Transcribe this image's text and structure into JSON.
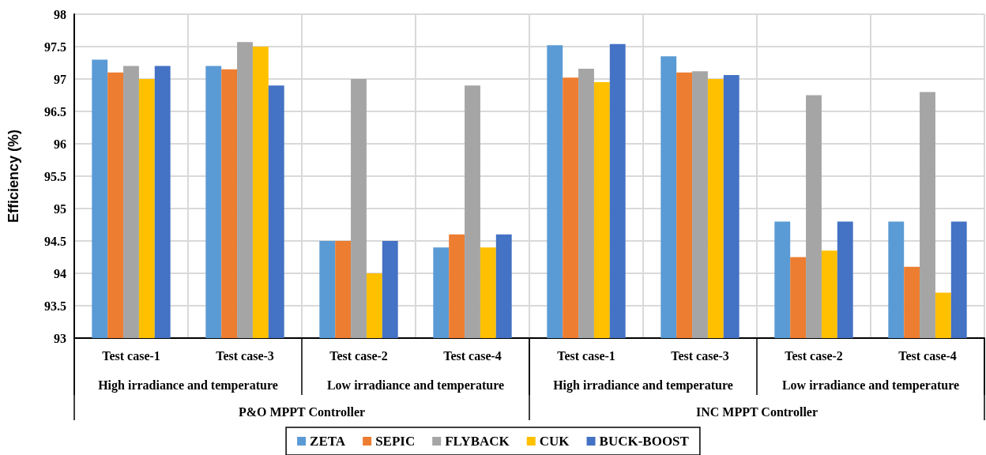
{
  "chart_data": {
    "type": "bar",
    "ylabel": "Efficiency (%)",
    "categories": [
      "Test case-1",
      "Test case-3",
      "Test case-2",
      "Test case-4",
      "Test case-1",
      "Test case-3",
      "Test case-2",
      "Test case-4"
    ],
    "annotations": [
      "High irradiance and temperature",
      "Low irradiance and temperature",
      "High irradiance and temperature",
      "Low irradiance and temperature",
      "P&O MPPT Controller",
      "INC MPPT Controller"
    ],
    "series": [
      {
        "name": "ZETA",
        "color": "#5b9bd5",
        "values": [
          97.3,
          97.2,
          94.5,
          94.4,
          97.52,
          97.35,
          94.8,
          94.8
        ]
      },
      {
        "name": "SEPIC",
        "color": "#ed7d31",
        "values": [
          97.1,
          97.15,
          94.5,
          94.6,
          97.02,
          97.1,
          94.25,
          94.1
        ]
      },
      {
        "name": "FLYBACK",
        "color": "#a5a5a5",
        "values": [
          97.2,
          97.57,
          97.0,
          96.9,
          97.16,
          97.12,
          96.75,
          96.8
        ]
      },
      {
        "name": "CUK",
        "color": "#ffc000",
        "values": [
          97.0,
          97.5,
          94.0,
          94.4,
          96.95,
          97.0,
          94.35,
          93.7
        ]
      },
      {
        "name": "BUCK-BOOST",
        "color": "#4472c4",
        "values": [
          97.2,
          96.9,
          94.5,
          94.6,
          97.54,
          97.06,
          94.8,
          94.8
        ]
      }
    ],
    "ylim": [
      93,
      98
    ],
    "yticks": [
      93,
      93.5,
      94,
      94.5,
      95,
      95.5,
      96,
      96.5,
      97,
      97.5,
      98
    ],
    "grid": true,
    "legend": "bottom"
  }
}
